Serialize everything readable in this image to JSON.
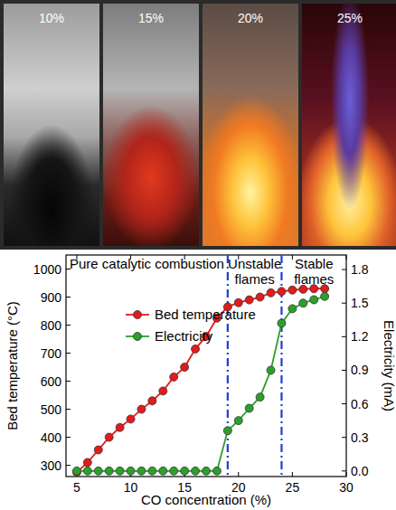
{
  "photo": {
    "labels": [
      "10%",
      "15%",
      "20%",
      "25%"
    ]
  },
  "chart_data": {
    "type": "line",
    "x": [
      5,
      6,
      7,
      8,
      9,
      10,
      11,
      12,
      13,
      14,
      15,
      16,
      17,
      18,
      19,
      20,
      21,
      22,
      23,
      24,
      25,
      26,
      27,
      28
    ],
    "series": [
      {
        "name": "Bed temperature",
        "color": "#e41a1c",
        "marker": "circle",
        "values": [
          275,
          310,
          355,
          400,
          435,
          465,
          500,
          530,
          565,
          615,
          650,
          715,
          760,
          825,
          865,
          880,
          890,
          900,
          915,
          920,
          925,
          928,
          930,
          930
        ]
      },
      {
        "name": "Electricity",
        "color": "#2ca02c",
        "marker": "circle",
        "axis": "y2",
        "values": [
          0,
          0,
          0,
          0,
          0,
          0,
          0,
          0,
          0,
          0,
          0,
          0,
          0,
          0,
          0.36,
          0.45,
          0.56,
          0.66,
          0.9,
          1.32,
          1.45,
          1.5,
          1.53,
          1.56
        ]
      }
    ],
    "xlabel": "CO concentration (%)",
    "ylabel": "Bed temperature (°C)",
    "y2label": "Electricity (mA)",
    "xlim": [
      4,
      30
    ],
    "xticks": [
      5,
      10,
      15,
      20,
      25,
      30
    ],
    "ylim": [
      260,
      1050
    ],
    "yticks": [
      300,
      400,
      500,
      600,
      700,
      800,
      900,
      1000
    ],
    "y2lim": [
      -0.05,
      1.93
    ],
    "y2ticks": [
      {
        "value": 0,
        "label": "0.0"
      },
      0.3,
      0.6,
      0.9,
      1.2,
      1.5,
      1.8
    ],
    "reference_lines": [
      19,
      24
    ],
    "annotations": [
      "Pure catalytic combustion",
      "Unstable flames",
      "Stable flames"
    ],
    "legend": "upper left"
  }
}
